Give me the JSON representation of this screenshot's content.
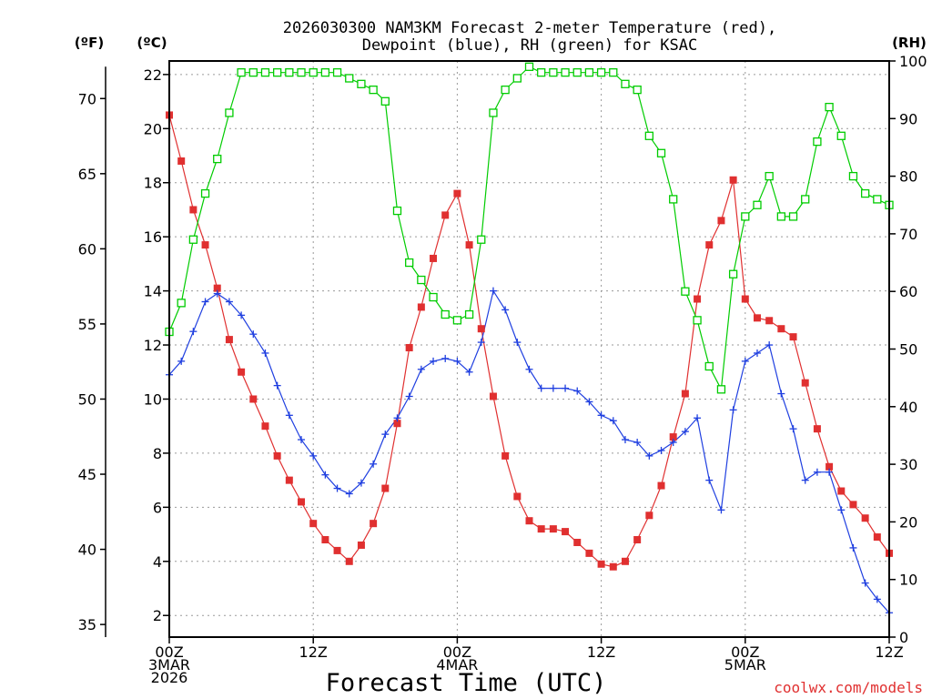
{
  "title_lines": [
    "2026030300 NAM3KM Forecast 2-meter Temperature (red),",
    "Dewpoint (blue), RH (green) for KSAC"
  ],
  "unit_labels": {
    "f": "(ºF)",
    "c": "(ºC)",
    "rh": "(RH)"
  },
  "xlabel": "Forecast Time (UTC)",
  "credit": "coolwx.com/models",
  "x_ticks": [
    {
      "hour": 0,
      "lines": [
        "00Z",
        "3MAR",
        "2026"
      ]
    },
    {
      "hour": 12,
      "lines": [
        "12Z"
      ]
    },
    {
      "hour": 24,
      "lines": [
        "00Z",
        "4MAR"
      ]
    },
    {
      "hour": 36,
      "lines": [
        "12Z"
      ]
    },
    {
      "hour": 48,
      "lines": [
        "00Z",
        "5MAR"
      ]
    },
    {
      "hour": 60,
      "lines": [
        "12Z"
      ]
    }
  ],
  "y_ticks_c": [
    "2",
    "4",
    "6",
    "8",
    "10",
    "12",
    "14",
    "16",
    "18",
    "20",
    "22"
  ],
  "y_ticks_f": [
    "35",
    "40",
    "45",
    "50",
    "55",
    "60",
    "65",
    "70"
  ],
  "y_ticks_rh": [
    "0",
    "10",
    "20",
    "30",
    "40",
    "50",
    "60",
    "70",
    "80",
    "90",
    "100"
  ],
  "colors": {
    "temperature": "#e03030",
    "dewpoint": "#1f3fe0",
    "rh": "#00cc00"
  },
  "chart_data": {
    "type": "line",
    "title": "2026030300 NAM3KM Forecast 2-meter Temperature (red), Dewpoint (blue), RH (green) for KSAC",
    "xlabel": "Forecast Time (UTC)",
    "x_unit": "forecast hour",
    "x": [
      0,
      1,
      2,
      3,
      4,
      5,
      6,
      7,
      8,
      9,
      10,
      11,
      12,
      13,
      14,
      15,
      16,
      17,
      18,
      19,
      20,
      21,
      22,
      23,
      24,
      25,
      26,
      27,
      28,
      29,
      30,
      31,
      32,
      33,
      34,
      35,
      36,
      37,
      38,
      39,
      40,
      41,
      42,
      43,
      44,
      45,
      46,
      47,
      48,
      49,
      50,
      51,
      52,
      53,
      54,
      55,
      56,
      57,
      58,
      59,
      60
    ],
    "xlim": [
      0,
      60
    ],
    "ylim_c": [
      1.2,
      22.5
    ],
    "ylim_rh": [
      0,
      100
    ],
    "series": [
      {
        "name": "2-meter Temperature",
        "axis": "C",
        "marker": "filled-square",
        "values": [
          20.5,
          18.8,
          17.0,
          15.7,
          14.1,
          12.2,
          11.0,
          10.0,
          9.0,
          7.9,
          7.0,
          6.2,
          5.4,
          4.8,
          4.4,
          4.0,
          4.6,
          5.4,
          6.7,
          9.1,
          11.9,
          13.4,
          15.2,
          16.8,
          17.6,
          15.7,
          12.6,
          10.1,
          7.9,
          6.4,
          5.5,
          5.2,
          5.2,
          5.1,
          4.7,
          4.3,
          3.9,
          3.8,
          4.0,
          4.8,
          5.7,
          6.8,
          8.6,
          10.2,
          13.7,
          15.7,
          16.6,
          18.1,
          13.7,
          13.0,
          12.9,
          12.6,
          12.3,
          10.6,
          8.9,
          7.5,
          6.6,
          6.1,
          5.6,
          4.9,
          4.3
        ]
      },
      {
        "name": "Dewpoint",
        "axis": "C",
        "marker": "plus",
        "values": [
          10.9,
          11.4,
          12.5,
          13.6,
          13.9,
          13.6,
          13.1,
          12.4,
          11.7,
          10.5,
          9.4,
          8.5,
          7.9,
          7.2,
          6.7,
          6.5,
          6.9,
          7.6,
          8.7,
          9.3,
          10.1,
          11.1,
          11.4,
          11.5,
          11.4,
          11.0,
          12.1,
          14.0,
          13.3,
          12.1,
          11.1,
          10.4,
          10.4,
          10.4,
          10.3,
          9.9,
          9.4,
          9.2,
          8.5,
          8.4,
          7.9,
          8.1,
          8.4,
          8.8,
          9.3,
          7.0,
          5.9,
          9.6,
          11.4,
          11.7,
          12.0,
          10.2,
          8.9,
          7.0,
          7.3,
          7.3,
          5.9,
          4.5,
          3.2,
          2.6,
          2.1
        ]
      },
      {
        "name": "RH",
        "axis": "RH",
        "marker": "open-square",
        "values": [
          53,
          58,
          69,
          77,
          83,
          91,
          98,
          98,
          98,
          98,
          98,
          98,
          98,
          98,
          98,
          97,
          96,
          95,
          93,
          74,
          65,
          62,
          59,
          56,
          55,
          56,
          69,
          91,
          95,
          97,
          99,
          98,
          98,
          98,
          98,
          98,
          98,
          98,
          96,
          95,
          87,
          84,
          76,
          60,
          55,
          47,
          43,
          63,
          73,
          75,
          80,
          73,
          73,
          76,
          86,
          92,
          87,
          80,
          77,
          76,
          75
        ]
      }
    ]
  }
}
